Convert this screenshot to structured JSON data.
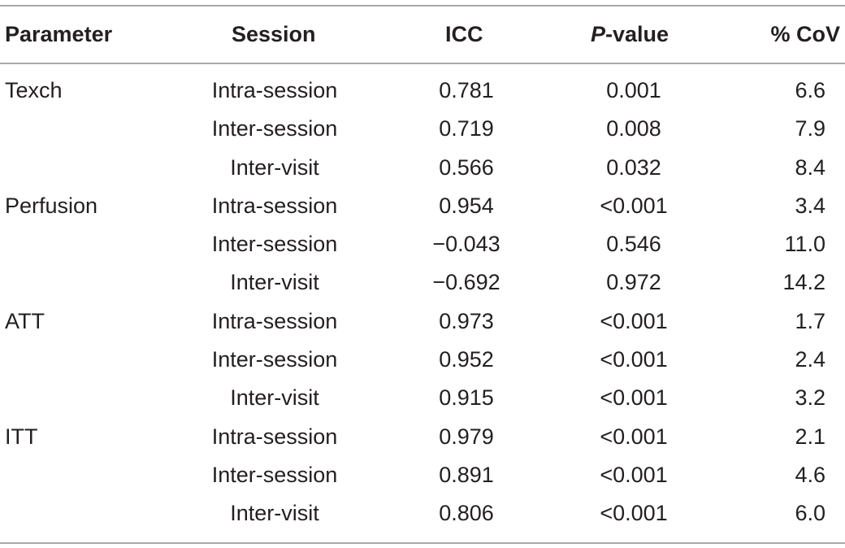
{
  "table": {
    "headers": {
      "parameter": "Parameter",
      "session": "Session",
      "icc": "ICC",
      "p_italic": "P",
      "p_rest": "-value",
      "cov": "% CoV"
    },
    "rows": [
      {
        "parameter": "Texch",
        "session": "Intra-session",
        "icc": "0.781",
        "p": "0.001",
        "cov": "6.6"
      },
      {
        "parameter": "",
        "session": "Inter-session",
        "icc": "0.719",
        "p": "0.008",
        "cov": "7.9"
      },
      {
        "parameter": "",
        "session": "Inter-visit",
        "icc": "0.566",
        "p": "0.032",
        "cov": "8.4"
      },
      {
        "parameter": "Perfusion",
        "session": "Intra-session",
        "icc": "0.954",
        "p": "<0.001",
        "cov": "3.4"
      },
      {
        "parameter": "",
        "session": "Inter-session",
        "icc": "−0.043",
        "p": "0.546",
        "cov": "11.0"
      },
      {
        "parameter": "",
        "session": "Inter-visit",
        "icc": "−0.692",
        "p": "0.972",
        "cov": "14.2"
      },
      {
        "parameter": "ATT",
        "session": "Intra-session",
        "icc": "0.973",
        "p": "<0.001",
        "cov": "1.7"
      },
      {
        "parameter": "",
        "session": "Inter-session",
        "icc": "0.952",
        "p": "<0.001",
        "cov": "2.4"
      },
      {
        "parameter": "",
        "session": "Inter-visit",
        "icc": "0.915",
        "p": "<0.001",
        "cov": "3.2"
      },
      {
        "parameter": "ITT",
        "session": "Intra-session",
        "icc": "0.979",
        "p": "<0.001",
        "cov": "2.1"
      },
      {
        "parameter": "",
        "session": "Inter-session",
        "icc": "0.891",
        "p": "<0.001",
        "cov": "4.6"
      },
      {
        "parameter": "",
        "session": "Inter-visit",
        "icc": "0.806",
        "p": "<0.001",
        "cov": "6.0"
      }
    ]
  }
}
